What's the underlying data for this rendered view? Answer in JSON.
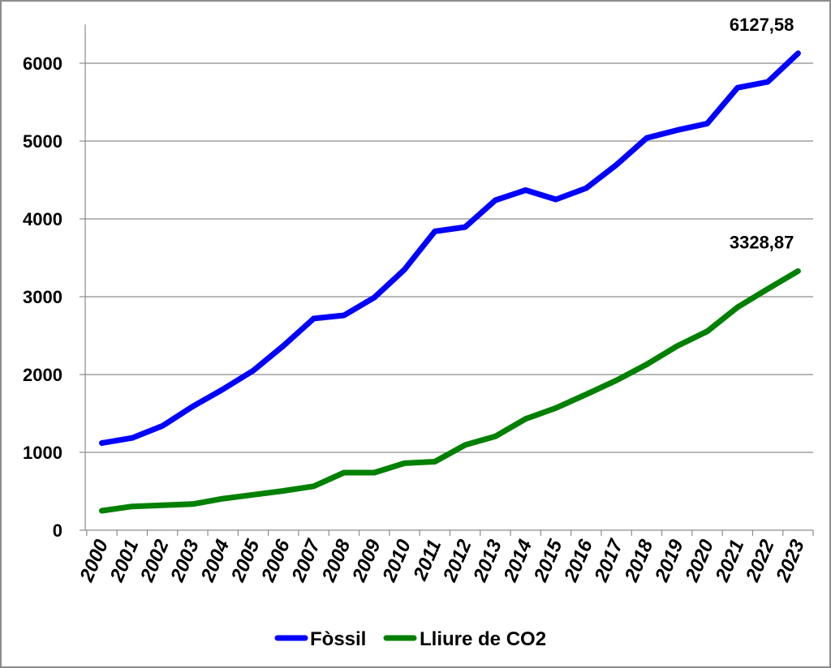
{
  "chart_data": {
    "type": "line",
    "title": "",
    "xlabel": "",
    "ylabel": "",
    "categories": [
      "2000",
      "2001",
      "2002",
      "2003",
      "2004",
      "2005",
      "2006",
      "2007",
      "2008",
      "2009",
      "2010",
      "2011",
      "2012",
      "2013",
      "2014",
      "2015",
      "2016",
      "2017",
      "2018",
      "2019",
      "2020",
      "2021",
      "2022",
      "2023"
    ],
    "ylim": [
      0,
      6500
    ],
    "yticks": [
      0,
      1000,
      2000,
      3000,
      4000,
      5000,
      6000
    ],
    "grid": true,
    "legend_position": "bottom",
    "series": [
      {
        "name": "Fòssil",
        "color": "#0000ff",
        "values": [
          1120,
          1185,
          1340,
          1590,
          1810,
          2050,
          2370,
          2720,
          2760,
          2990,
          3350,
          3840,
          3895,
          4240,
          4370,
          4250,
          4395,
          4695,
          5040,
          5140,
          5225,
          5685,
          5760,
          6127.58
        ],
        "end_label": "6127,58"
      },
      {
        "name": "Lliure de CO2",
        "color": "#008000",
        "values": [
          250,
          305,
          320,
          335,
          405,
          455,
          505,
          565,
          740,
          740,
          860,
          880,
          1095,
          1205,
          1430,
          1570,
          1745,
          1925,
          2130,
          2365,
          2555,
          2865,
          3100,
          3328.87
        ],
        "end_label": "3328,87"
      }
    ]
  }
}
